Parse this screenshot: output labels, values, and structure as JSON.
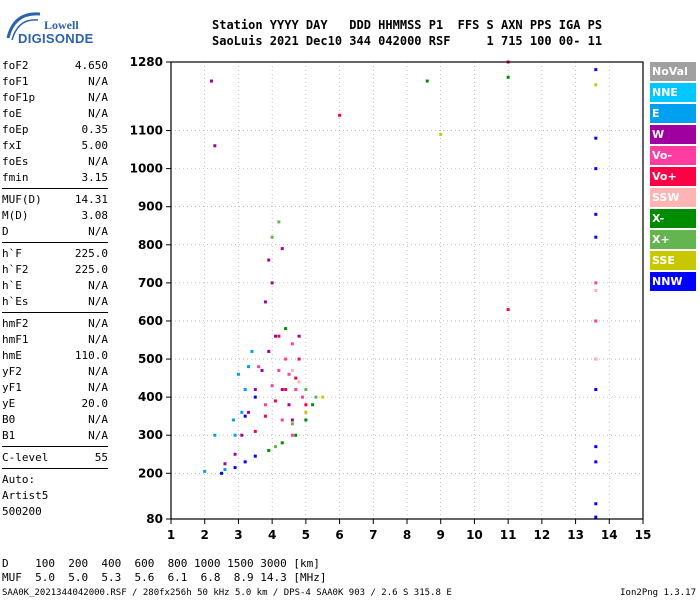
{
  "logo": {
    "line1": "Lowell",
    "line2": "DIGISONDE"
  },
  "header": {
    "line1": "Station YYYY DAY   DDD HHMMSS P1  FFS S AXN PPS IGA PS",
    "line2": "SaoLuis 2021 Dec10 344 042000 RSF     1 715 100 00- 11"
  },
  "params_group1": [
    {
      "name": "foF2",
      "value": "4.650"
    },
    {
      "name": "foF1",
      "value": "N/A"
    },
    {
      "name": "foF1p",
      "value": "N/A"
    },
    {
      "name": "foE",
      "value": "N/A"
    },
    {
      "name": "foEp",
      "value": "0.35"
    },
    {
      "name": "fxI",
      "value": "5.00"
    },
    {
      "name": "foEs",
      "value": "N/A"
    },
    {
      "name": "fmin",
      "value": "3.15"
    }
  ],
  "params_group2": [
    {
      "name": "MUF(D)",
      "value": "14.31"
    },
    {
      "name": "M(D)",
      "value": "3.08"
    },
    {
      "name": "D",
      "value": "N/A"
    }
  ],
  "params_group3": [
    {
      "name": "h`F",
      "value": "225.0"
    },
    {
      "name": "h`F2",
      "value": "225.0"
    },
    {
      "name": "h`E",
      "value": "N/A"
    },
    {
      "name": "h`Es",
      "value": "N/A"
    }
  ],
  "params_group4": [
    {
      "name": "hmF2",
      "value": "N/A"
    },
    {
      "name": "hmF1",
      "value": "N/A"
    },
    {
      "name": "hmE",
      "value": "110.0"
    },
    {
      "name": "yF2",
      "value": "N/A"
    },
    {
      "name": "yF1",
      "value": "N/A"
    },
    {
      "name": "yE",
      "value": "20.0"
    },
    {
      "name": "B0",
      "value": "N/A"
    },
    {
      "name": "B1",
      "value": "N/A"
    }
  ],
  "params_group5": [
    {
      "name": "C-level",
      "value": "55"
    }
  ],
  "auto": {
    "line1": "Auto:",
    "line2": "Artist5",
    "line3": "500200"
  },
  "muf_table": {
    "line1": "D    100  200  400  600  800 1000 1500 3000 [km]",
    "line2": "MUF  5.0  5.0  5.3  5.6  6.1  6.8  8.9 14.3 [MHz]"
  },
  "footer": {
    "left": "SAA0K_2021344042000.RSF / 280fx256h 50 kHz 5.0 km / DPS-4 SAA0K 903 / 2.6 S 315.8 E",
    "right": "Ion2Png 1.3.17"
  },
  "legend": [
    {
      "label": "NoVal",
      "color": "#a0a0a0"
    },
    {
      "label": "NNE",
      "color": "#00c8ff"
    },
    {
      "label": "E",
      "color": "#00a0f0"
    },
    {
      "label": "W",
      "color": "#a000a0"
    },
    {
      "label": "Vo-",
      "color": "#ff3ca0"
    },
    {
      "label": "Vo+",
      "color": "#ff0046"
    },
    {
      "label": "SSW",
      "color": "#ffb4b4"
    },
    {
      "label": "X-",
      "color": "#008c00"
    },
    {
      "label": "X+",
      "color": "#64b450"
    },
    {
      "label": "SSE",
      "color": "#c8c800"
    },
    {
      "label": "NNW",
      "color": "#0000ff"
    }
  ],
  "chart_data": {
    "type": "scatter",
    "x_ticks": [
      1,
      2,
      3,
      4,
      5,
      6,
      7,
      8,
      9,
      10,
      11,
      12,
      13,
      14,
      15
    ],
    "y_ticks": [
      80,
      200,
      300,
      400,
      500,
      600,
      700,
      800,
      900,
      1000,
      1100,
      1280
    ],
    "xlim": [
      1,
      15
    ],
    "ylim": [
      80,
      1280
    ],
    "grid": "dotted",
    "legend_position": "right",
    "series": [
      {
        "name": "E",
        "color": "#00a0f0",
        "points": [
          [
            2.0,
            205
          ],
          [
            2.3,
            300
          ],
          [
            2.6,
            210
          ],
          [
            2.85,
            340
          ],
          [
            3.0,
            460
          ],
          [
            2.9,
            300
          ],
          [
            3.1,
            360
          ],
          [
            3.2,
            420
          ],
          [
            3.3,
            480
          ],
          [
            3.4,
            520
          ]
        ]
      },
      {
        "name": "W",
        "color": "#a000a0",
        "points": [
          [
            2.6,
            225
          ],
          [
            2.9,
            250
          ],
          [
            3.1,
            300
          ],
          [
            3.3,
            360
          ],
          [
            3.5,
            420
          ],
          [
            3.7,
            470
          ],
          [
            3.9,
            520
          ],
          [
            4.1,
            560
          ],
          [
            4.3,
            420
          ],
          [
            4.5,
            380
          ],
          [
            4.6,
            340
          ],
          [
            3.8,
            650
          ],
          [
            4.0,
            700
          ],
          [
            3.9,
            760
          ],
          [
            4.3,
            790
          ],
          [
            4.8,
            560
          ],
          [
            2.2,
            1230
          ],
          [
            2.3,
            1060
          ]
        ]
      },
      {
        "name": "Vo-",
        "color": "#ff3ca0",
        "points": [
          [
            3.8,
            380
          ],
          [
            4.0,
            430
          ],
          [
            4.2,
            470
          ],
          [
            4.4,
            500
          ],
          [
            4.6,
            540
          ],
          [
            4.5,
            460
          ],
          [
            4.7,
            420
          ],
          [
            4.9,
            400
          ],
          [
            4.3,
            340
          ],
          [
            4.6,
            300
          ],
          [
            3.6,
            480
          ],
          [
            13.6,
            700
          ],
          [
            13.6,
            600
          ],
          [
            13.6,
            500
          ]
        ]
      },
      {
        "name": "Vo+",
        "color": "#ff0046",
        "points": [
          [
            3.5,
            310
          ],
          [
            3.8,
            350
          ],
          [
            4.1,
            390
          ],
          [
            4.4,
            420
          ],
          [
            4.7,
            450
          ],
          [
            5.0,
            380
          ],
          [
            4.8,
            500
          ],
          [
            4.2,
            560
          ],
          [
            11.0,
            630
          ],
          [
            11.0,
            1280
          ],
          [
            6.0,
            1140
          ]
        ]
      },
      {
        "name": "SSW",
        "color": "#ffb4b4",
        "points": [
          [
            4.6,
            470
          ],
          [
            4.8,
            440
          ],
          [
            13.6,
            680
          ],
          [
            13.6,
            500
          ]
        ]
      },
      {
        "name": "X-",
        "color": "#008c00",
        "points": [
          [
            3.9,
            260
          ],
          [
            4.3,
            280
          ],
          [
            4.7,
            300
          ],
          [
            5.0,
            340
          ],
          [
            5.2,
            380
          ],
          [
            4.4,
            580
          ],
          [
            8.6,
            1230
          ],
          [
            11.0,
            1240
          ]
        ]
      },
      {
        "name": "X+",
        "color": "#64b450",
        "points": [
          [
            4.1,
            270
          ],
          [
            4.6,
            330
          ],
          [
            5.0,
            420
          ],
          [
            5.3,
            400
          ],
          [
            4.0,
            820
          ],
          [
            4.2,
            860
          ]
        ]
      },
      {
        "name": "SSE",
        "color": "#c8c800",
        "points": [
          [
            5.0,
            360
          ],
          [
            5.5,
            400
          ],
          [
            9.0,
            1090
          ],
          [
            13.6,
            1220
          ]
        ]
      },
      {
        "name": "NNW",
        "color": "#0000ff",
        "points": [
          [
            2.5,
            200
          ],
          [
            2.9,
            215
          ],
          [
            3.2,
            230
          ],
          [
            3.5,
            245
          ],
          [
            3.2,
            350
          ],
          [
            3.5,
            400
          ],
          [
            13.6,
            1260
          ],
          [
            13.6,
            1080
          ],
          [
            13.6,
            1000
          ],
          [
            13.6,
            880
          ],
          [
            13.6,
            820
          ],
          [
            13.6,
            420
          ],
          [
            13.6,
            270
          ],
          [
            13.6,
            230
          ],
          [
            13.6,
            120
          ],
          [
            13.6,
            85
          ]
        ]
      }
    ]
  }
}
